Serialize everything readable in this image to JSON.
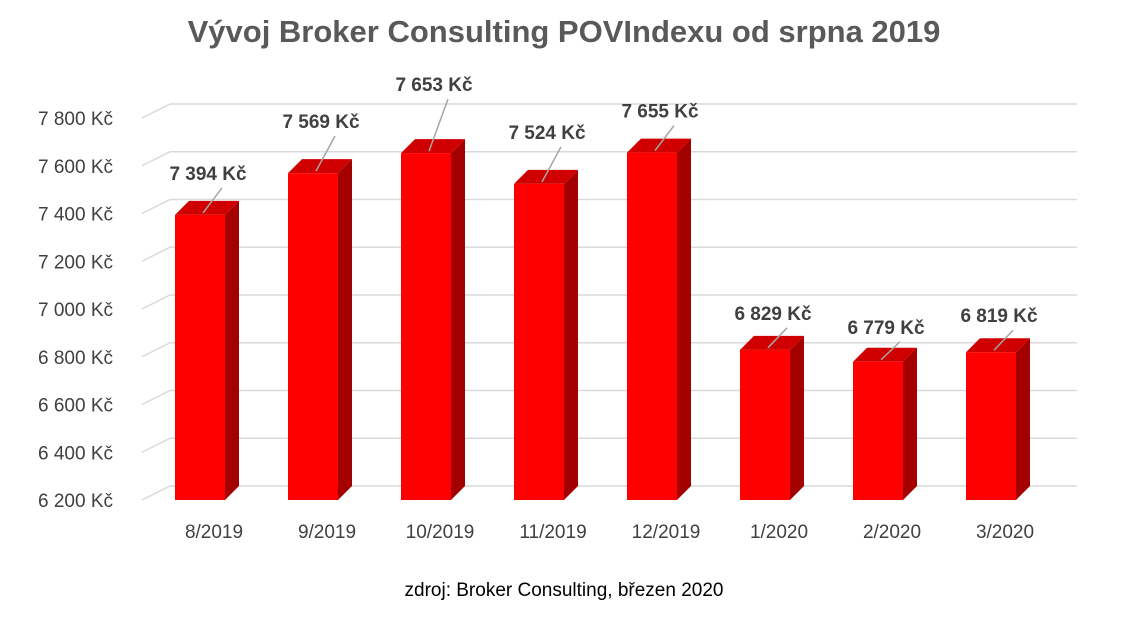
{
  "chart_data": {
    "type": "bar",
    "title": "Vývoj Broker Consulting POVIndexu od srpna 2019",
    "categories": [
      "8/2019",
      "9/2019",
      "10/2019",
      "11/2019",
      "12/2019",
      "1/2020",
      "2/2020",
      "3/2020"
    ],
    "values": [
      7394,
      7569,
      7653,
      7524,
      7655,
      6829,
      6779,
      6819
    ],
    "data_labels": [
      "7 394 Kč",
      "7 569 Kč",
      "7 653 Kč",
      "7 524 Kč",
      "7 655 Kč",
      "6 829 Kč",
      "6 779 Kč",
      "6 819 Kč"
    ],
    "ylim": [
      6200,
      7800
    ],
    "yticks": [
      6200,
      6400,
      6600,
      6800,
      7000,
      7200,
      7400,
      7600,
      7800
    ],
    "ytick_labels": [
      "6 200 Kč",
      "6 400 Kč",
      "6 600 Kč",
      "6 800 Kč",
      "7 000 Kč",
      "7 200 Kč",
      "7 400 Kč",
      "7 600 Kč",
      "7 800 Kč"
    ],
    "grid": true,
    "style": "3d-column",
    "colors": {
      "bar_front": "#ff0000",
      "bar_side": "#a50000",
      "bar_top": "#d00000",
      "gridline": "#d9d9d9",
      "label_text": "#404040",
      "title_text": "#595959"
    }
  },
  "source_note": "zdroj: Broker Consulting, březen 2020"
}
